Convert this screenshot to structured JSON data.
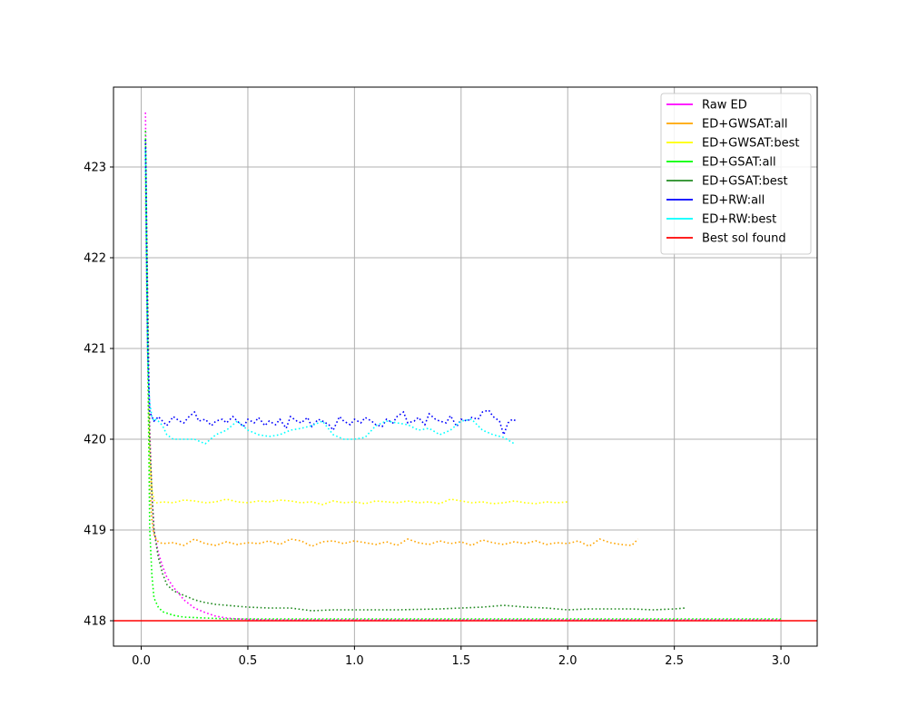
{
  "chart_data": {
    "type": "line",
    "title": "",
    "xlabel": "",
    "ylabel": "",
    "xlim": [
      -0.13,
      3.17
    ],
    "ylim": [
      417.72,
      423.88
    ],
    "xticks": [
      0.0,
      0.5,
      1.0,
      1.5,
      2.0,
      2.5,
      3.0
    ],
    "xtick_labels": [
      "0.0",
      "0.5",
      "1.0",
      "1.5",
      "2.0",
      "2.5",
      "3.0"
    ],
    "yticks": [
      418,
      419,
      420,
      421,
      422,
      423
    ],
    "ytick_labels": [
      "418",
      "419",
      "420",
      "421",
      "422",
      "423"
    ],
    "grid": true,
    "legend_position": "top-right",
    "series": [
      {
        "name": "Raw ED",
        "color": "#ff00ff",
        "style": "dotted",
        "x": [
          0.02,
          0.025,
          0.03,
          0.035,
          0.04,
          0.05,
          0.06,
          0.08,
          0.1,
          0.12,
          0.15,
          0.18,
          0.2,
          0.25,
          0.3,
          0.35,
          0.4,
          0.45,
          0.5,
          0.6,
          0.8,
          1.0,
          1.5,
          2.0,
          2.5,
          3.0
        ],
        "y": [
          423.6,
          422.5,
          421.6,
          420.8,
          420.1,
          419.4,
          419.0,
          418.75,
          418.6,
          418.48,
          418.37,
          418.29,
          418.23,
          418.14,
          418.09,
          418.05,
          418.03,
          418.02,
          418.015,
          418.01,
          418.01,
          418.01,
          418.01,
          418.01,
          418.01,
          418.01
        ]
      },
      {
        "name": "ED+GWSAT:all",
        "color": "#ffa500",
        "style": "dotted",
        "x": [
          0.02,
          0.025,
          0.03,
          0.035,
          0.04,
          0.05,
          0.06,
          0.07,
          0.08,
          0.1,
          0.15,
          0.2,
          0.25,
          0.3,
          0.35,
          0.4,
          0.45,
          0.5,
          0.55,
          0.6,
          0.65,
          0.7,
          0.75,
          0.8,
          0.85,
          0.9,
          0.95,
          1.0,
          1.05,
          1.1,
          1.15,
          1.2,
          1.25,
          1.3,
          1.35,
          1.4,
          1.45,
          1.5,
          1.55,
          1.6,
          1.65,
          1.7,
          1.75,
          1.8,
          1.85,
          1.9,
          1.95,
          2.0,
          2.05,
          2.1,
          2.15,
          2.2,
          2.25,
          2.3,
          2.33
        ],
        "y": [
          422.9,
          421.8,
          420.9,
          420.1,
          419.5,
          419.1,
          418.95,
          418.9,
          418.87,
          418.85,
          418.86,
          418.83,
          418.9,
          418.85,
          418.83,
          418.87,
          418.84,
          418.86,
          418.85,
          418.88,
          418.84,
          418.9,
          418.88,
          418.82,
          418.87,
          418.88,
          418.85,
          418.88,
          418.86,
          418.84,
          418.87,
          418.83,
          418.9,
          418.86,
          418.84,
          418.88,
          418.85,
          418.87,
          418.83,
          418.89,
          418.86,
          418.84,
          418.87,
          418.85,
          418.88,
          418.84,
          418.86,
          418.85,
          418.88,
          418.82,
          418.9,
          418.86,
          418.84,
          418.83,
          418.9
        ]
      },
      {
        "name": "ED+GWSAT:best",
        "color": "#ffff00",
        "style": "dotted",
        "x": [
          0.02,
          0.025,
          0.03,
          0.035,
          0.04,
          0.05,
          0.06,
          0.07,
          0.08,
          0.1,
          0.15,
          0.2,
          0.25,
          0.3,
          0.35,
          0.4,
          0.45,
          0.5,
          0.55,
          0.6,
          0.65,
          0.7,
          0.75,
          0.8,
          0.85,
          0.9,
          0.95,
          1.0,
          1.05,
          1.1,
          1.15,
          1.2,
          1.25,
          1.3,
          1.35,
          1.4,
          1.45,
          1.5,
          1.55,
          1.6,
          1.65,
          1.7,
          1.75,
          1.8,
          1.85,
          1.9,
          1.95,
          2.0
        ],
        "y": [
          422.9,
          421.9,
          421.0,
          420.3,
          419.8,
          419.45,
          419.33,
          419.3,
          419.3,
          419.31,
          419.3,
          419.33,
          419.32,
          419.3,
          419.31,
          419.34,
          419.31,
          419.3,
          419.32,
          419.31,
          419.33,
          419.32,
          419.3,
          419.31,
          419.28,
          419.32,
          419.3,
          419.31,
          419.29,
          419.32,
          419.31,
          419.3,
          419.32,
          419.3,
          419.31,
          419.29,
          419.34,
          419.32,
          419.3,
          419.31,
          419.29,
          419.3,
          419.32,
          419.3,
          419.29,
          419.31,
          419.3,
          419.31
        ]
      },
      {
        "name": "ED+GSAT:all",
        "color": "#00ff00",
        "style": "dotted",
        "x": [
          0.02,
          0.025,
          0.03,
          0.035,
          0.04,
          0.05,
          0.06,
          0.08,
          0.1,
          0.15,
          0.2,
          0.3,
          0.4,
          0.5,
          0.7,
          1.0,
          1.5,
          2.0,
          2.5,
          3.0
        ],
        "y": [
          423.4,
          422.3,
          421.2,
          420.0,
          419.0,
          418.5,
          418.25,
          418.15,
          418.1,
          418.06,
          418.04,
          418.03,
          418.02,
          418.02,
          418.02,
          418.02,
          418.02,
          418.02,
          418.02,
          418.02
        ]
      },
      {
        "name": "ED+GSAT:best",
        "color": "#228b22",
        "style": "dotted",
        "x": [
          0.02,
          0.025,
          0.03,
          0.035,
          0.04,
          0.05,
          0.06,
          0.08,
          0.1,
          0.12,
          0.15,
          0.2,
          0.25,
          0.3,
          0.35,
          0.4,
          0.45,
          0.5,
          0.6,
          0.7,
          0.8,
          0.9,
          1.0,
          1.2,
          1.4,
          1.6,
          1.7,
          1.8,
          1.9,
          2.0,
          2.1,
          2.2,
          2.3,
          2.4,
          2.5,
          2.55
        ],
        "y": [
          423.3,
          422.4,
          421.5,
          420.7,
          420.0,
          419.4,
          419.0,
          418.7,
          418.52,
          418.4,
          418.33,
          418.28,
          418.23,
          418.2,
          418.18,
          418.17,
          418.16,
          418.15,
          418.14,
          418.14,
          418.11,
          418.12,
          418.12,
          418.12,
          418.13,
          418.15,
          418.17,
          418.15,
          418.14,
          418.12,
          418.13,
          418.13,
          418.13,
          418.12,
          418.13,
          418.14
        ]
      },
      {
        "name": "ED+RW:all",
        "color": "#0000ff",
        "style": "dotted",
        "x": [
          0.02,
          0.025,
          0.03,
          0.035,
          0.04,
          0.05,
          0.06,
          0.07,
          0.08,
          0.1,
          0.12,
          0.15,
          0.18,
          0.2,
          0.22,
          0.25,
          0.27,
          0.3,
          0.33,
          0.35,
          0.38,
          0.4,
          0.43,
          0.45,
          0.48,
          0.5,
          0.53,
          0.55,
          0.58,
          0.6,
          0.63,
          0.65,
          0.68,
          0.7,
          0.73,
          0.75,
          0.78,
          0.8,
          0.83,
          0.85,
          0.88,
          0.9,
          0.93,
          0.95,
          0.98,
          1.0,
          1.03,
          1.05,
          1.08,
          1.1,
          1.13,
          1.15,
          1.18,
          1.2,
          1.23,
          1.25,
          1.28,
          1.3,
          1.33,
          1.35,
          1.38,
          1.4,
          1.43,
          1.45,
          1.48,
          1.5,
          1.53,
          1.55,
          1.58,
          1.6,
          1.63,
          1.65,
          1.68,
          1.7,
          1.72,
          1.74,
          1.76
        ],
        "y": [
          423.3,
          422.0,
          421.0,
          420.6,
          420.3,
          420.25,
          420.2,
          420.22,
          420.25,
          420.2,
          420.15,
          420.25,
          420.2,
          420.18,
          420.24,
          420.3,
          420.2,
          420.22,
          420.15,
          420.2,
          420.22,
          420.18,
          420.25,
          420.2,
          420.14,
          420.22,
          420.18,
          420.24,
          420.15,
          420.2,
          420.16,
          420.22,
          420.12,
          420.25,
          420.2,
          420.18,
          420.24,
          420.14,
          420.22,
          420.2,
          420.16,
          420.1,
          420.25,
          420.2,
          420.16,
          420.22,
          420.18,
          420.24,
          420.2,
          420.16,
          420.14,
          420.22,
          420.18,
          420.25,
          420.3,
          420.18,
          420.2,
          420.24,
          420.16,
          420.28,
          420.22,
          420.2,
          420.18,
          420.26,
          420.14,
          420.22,
          420.2,
          420.24,
          420.22,
          420.3,
          420.32,
          420.25,
          420.2,
          420.05,
          420.18,
          420.22,
          420.2
        ]
      },
      {
        "name": "ED+RW:best",
        "color": "#00ffff",
        "style": "dotted",
        "x": [
          0.02,
          0.025,
          0.03,
          0.035,
          0.04,
          0.05,
          0.06,
          0.07,
          0.08,
          0.1,
          0.12,
          0.15,
          0.18,
          0.2,
          0.25,
          0.3,
          0.35,
          0.4,
          0.45,
          0.5,
          0.55,
          0.6,
          0.65,
          0.7,
          0.75,
          0.8,
          0.85,
          0.9,
          0.95,
          1.0,
          1.05,
          1.1,
          1.15,
          1.2,
          1.25,
          1.3,
          1.35,
          1.4,
          1.45,
          1.5,
          1.55,
          1.6,
          1.65,
          1.7,
          1.75
        ],
        "y": [
          423.2,
          422.0,
          421.0,
          420.6,
          420.4,
          420.25,
          420.2,
          420.22,
          420.2,
          420.15,
          420.05,
          420.0,
          420.0,
          420.0,
          420.0,
          419.95,
          420.05,
          420.1,
          420.2,
          420.1,
          420.05,
          420.03,
          420.05,
          420.1,
          420.12,
          420.15,
          420.2,
          420.05,
          420.0,
          420.0,
          420.02,
          420.15,
          420.2,
          420.18,
          420.16,
          420.1,
          420.12,
          420.05,
          420.1,
          420.2,
          420.22,
          420.1,
          420.05,
          420.02,
          419.95
        ]
      },
      {
        "name": "Best sol found",
        "color": "#ff0000",
        "style": "solid",
        "hline": 418.0
      }
    ]
  }
}
